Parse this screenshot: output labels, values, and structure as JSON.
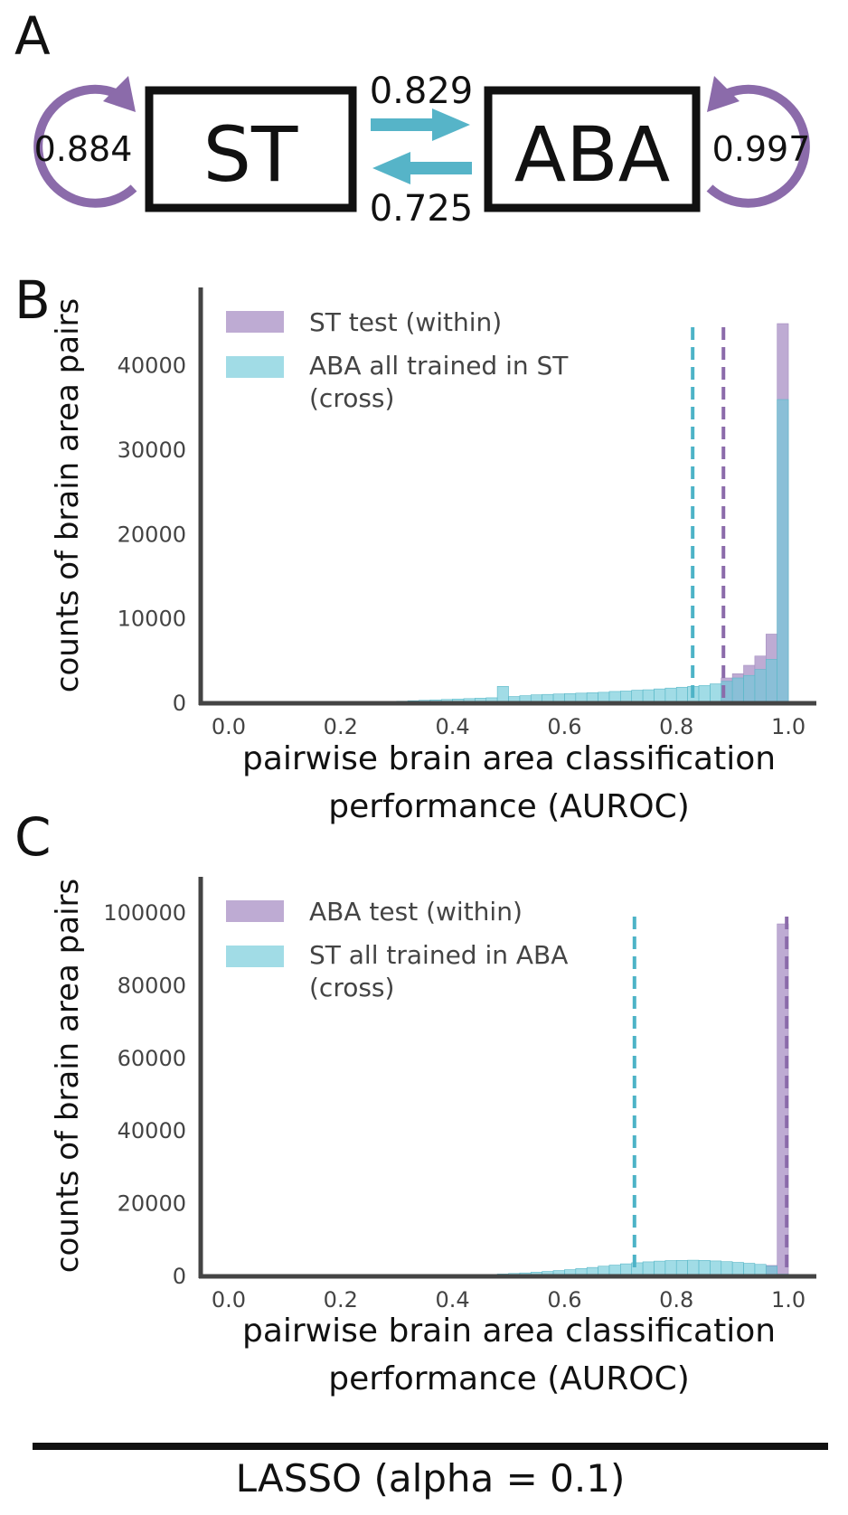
{
  "panel_letters": {
    "a": "A",
    "b": "B",
    "c": "C"
  },
  "diagram": {
    "left_box": "ST",
    "right_box": "ABA",
    "left_self_score": "0.884",
    "right_self_score": "0.997",
    "forward_score": "0.829",
    "backward_score": "0.725",
    "arrow_color": "#56B4C8",
    "loop_color": "#8B6BAA"
  },
  "footer": {
    "title": "LASSO (alpha = 0.1)"
  },
  "colors": {
    "within": "#B39CCB",
    "cross": "#6FCAD8",
    "within_line": "#8B6BAA",
    "cross_line": "#4DB3C7",
    "axis": "#444444"
  },
  "chart_data": [
    {
      "type": "bar",
      "title": "",
      "xlabel": [
        "pairwise brain area classification",
        "performance (AUROC)"
      ],
      "ylabel": "counts of brain area pairs",
      "xlim": [
        -0.05,
        1.05
      ],
      "ylim": [
        0,
        45000
      ],
      "xticks": [
        "0.0",
        "0.2",
        "0.4",
        "0.6",
        "0.8",
        "1.0"
      ],
      "yticks": [
        "0",
        "10000",
        "20000",
        "30000",
        "40000"
      ],
      "bin_width": 0.02,
      "legend": "top-left",
      "series": [
        {
          "name": "ST test (within)",
          "color": "#B39CCB",
          "mean": 0.884,
          "bins": [
            [
              0.9,
              3000
            ],
            [
              0.92,
              3500
            ],
            [
              0.94,
              4500
            ],
            [
              0.96,
              5600
            ],
            [
              0.98,
              8200
            ],
            [
              1.0,
              45000
            ]
          ]
        },
        {
          "name": [
            "ABA all trained in ST",
            "(cross)"
          ],
          "color": "#6FCAD8",
          "mean": 0.829,
          "bins": [
            [
              0.3,
              200
            ],
            [
              0.32,
              250
            ],
            [
              0.34,
              300
            ],
            [
              0.36,
              350
            ],
            [
              0.38,
              400
            ],
            [
              0.4,
              450
            ],
            [
              0.42,
              500
            ],
            [
              0.44,
              550
            ],
            [
              0.46,
              600
            ],
            [
              0.48,
              650
            ],
            [
              0.5,
              2000
            ],
            [
              0.52,
              800
            ],
            [
              0.54,
              900
            ],
            [
              0.56,
              1000
            ],
            [
              0.58,
              1050
            ],
            [
              0.6,
              1100
            ],
            [
              0.62,
              1150
            ],
            [
              0.64,
              1200
            ],
            [
              0.66,
              1250
            ],
            [
              0.68,
              1300
            ],
            [
              0.7,
              1400
            ],
            [
              0.72,
              1450
            ],
            [
              0.74,
              1550
            ],
            [
              0.76,
              1600
            ],
            [
              0.78,
              1700
            ],
            [
              0.8,
              1800
            ],
            [
              0.82,
              1900
            ],
            [
              0.84,
              2000
            ],
            [
              0.86,
              2100
            ],
            [
              0.88,
              2300
            ],
            [
              0.9,
              2600
            ],
            [
              0.92,
              3000
            ],
            [
              0.94,
              3300
            ],
            [
              0.96,
              4000
            ],
            [
              0.98,
              5200
            ],
            [
              1.0,
              36000
            ]
          ]
        }
      ]
    },
    {
      "type": "bar",
      "title": "",
      "xlabel": [
        "pairwise brain area classification",
        "performance (AUROC)"
      ],
      "ylabel": "counts of brain area pairs",
      "xlim": [
        -0.05,
        1.05
      ],
      "ylim": [
        0,
        100000
      ],
      "xticks": [
        "0.0",
        "0.2",
        "0.4",
        "0.6",
        "0.8",
        "1.0"
      ],
      "yticks": [
        "0",
        "20000",
        "40000",
        "60000",
        "80000",
        "100000"
      ],
      "bin_width": 0.02,
      "legend": "top-left",
      "series": [
        {
          "name": "ABA test (within)",
          "color": "#B39CCB",
          "mean": 0.997,
          "bins": [
            [
              0.98,
              3000
            ],
            [
              1.0,
              97000
            ]
          ]
        },
        {
          "name": [
            "ST all trained in ABA",
            "(cross)"
          ],
          "color": "#6FCAD8",
          "mean": 0.725,
          "bins": [
            [
              0.36,
              80
            ],
            [
              0.38,
              120
            ],
            [
              0.4,
              180
            ],
            [
              0.42,
              250
            ],
            [
              0.44,
              330
            ],
            [
              0.46,
              420
            ],
            [
              0.48,
              520
            ],
            [
              0.5,
              650
            ],
            [
              0.52,
              800
            ],
            [
              0.54,
              950
            ],
            [
              0.56,
              1150
            ],
            [
              0.58,
              1350
            ],
            [
              0.6,
              1600
            ],
            [
              0.62,
              1850
            ],
            [
              0.64,
              2150
            ],
            [
              0.66,
              2450
            ],
            [
              0.68,
              2800
            ],
            [
              0.7,
              3100
            ],
            [
              0.72,
              3450
            ],
            [
              0.74,
              3750
            ],
            [
              0.76,
              4000
            ],
            [
              0.78,
              4200
            ],
            [
              0.8,
              4350
            ],
            [
              0.82,
              4400
            ],
            [
              0.84,
              4450
            ],
            [
              0.86,
              4400
            ],
            [
              0.88,
              4250
            ],
            [
              0.9,
              4050
            ],
            [
              0.92,
              3850
            ],
            [
              0.94,
              3600
            ],
            [
              0.96,
              3300
            ],
            [
              0.98,
              2800
            ],
            [
              1.0,
              600
            ]
          ]
        }
      ]
    }
  ]
}
